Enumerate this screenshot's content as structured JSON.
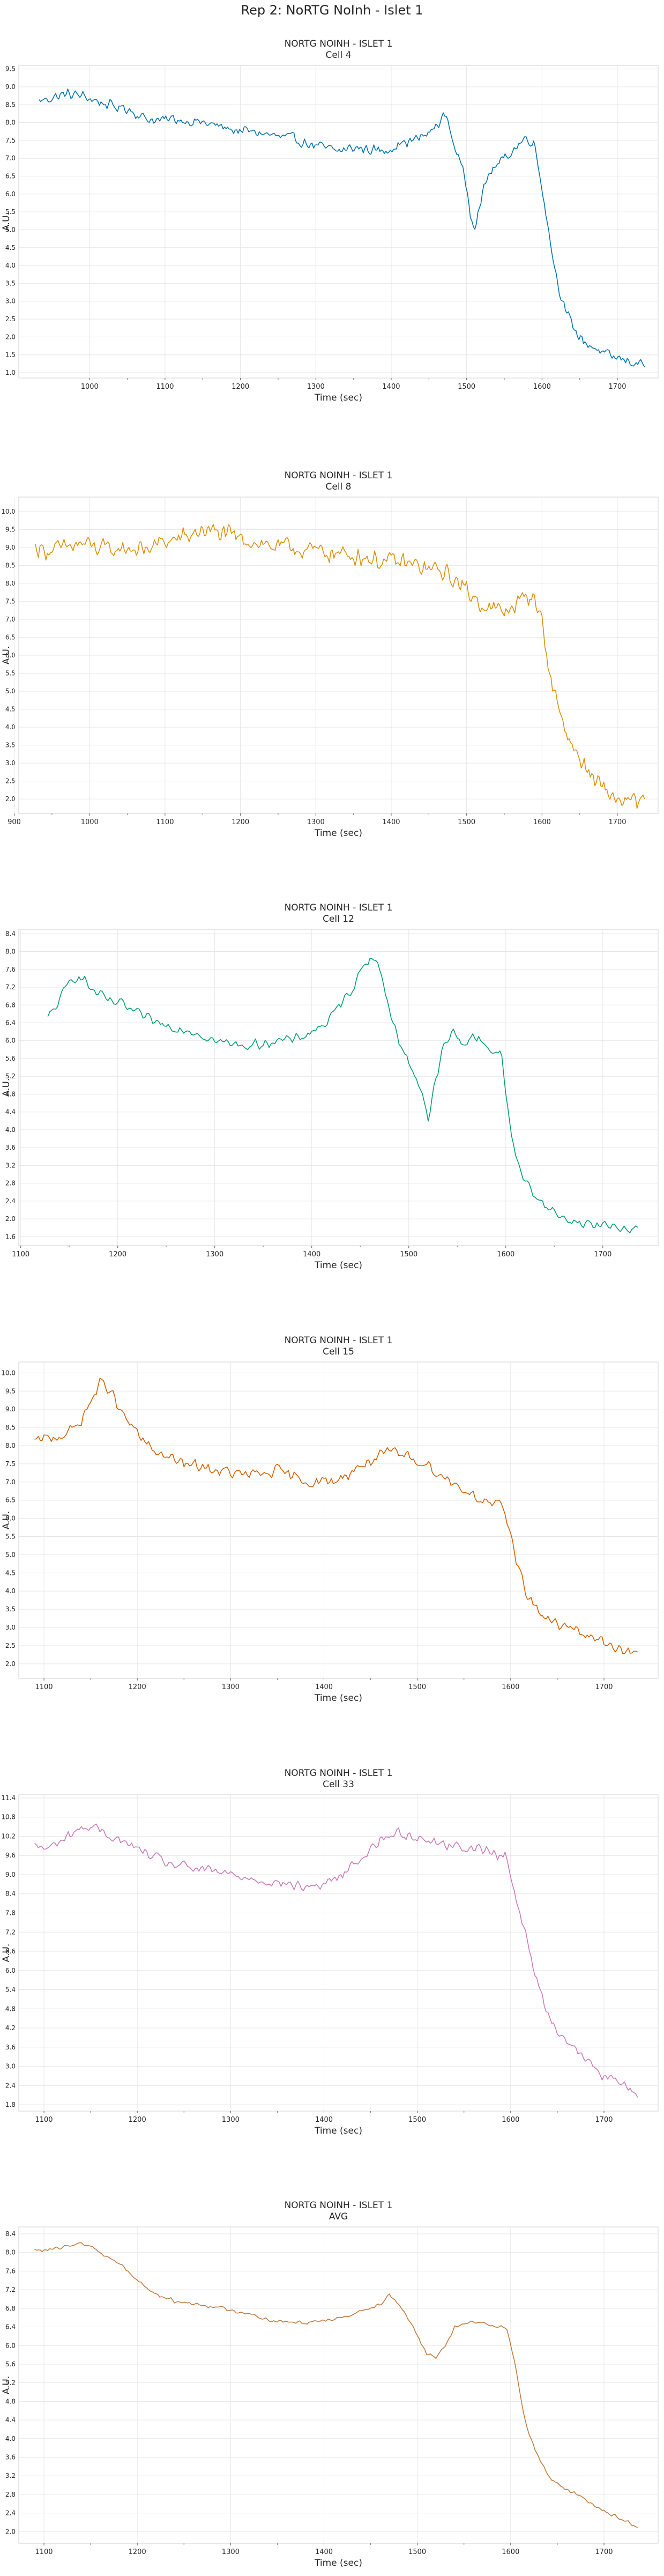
{
  "figure": {
    "title": "Rep 2: NoRTG NoInh - Islet 1"
  },
  "chart_data": [
    {
      "type": "line",
      "title": "NORTG NOINH - ISLET 1",
      "subtitle": "Cell 4",
      "xlabel": "Time (sec)",
      "ylabel": "A.U.",
      "color": "#0072b2",
      "xlim": [
        906,
        1754
      ],
      "ylim": [
        0.85,
        9.6
      ],
      "xticks": [
        1000,
        1100,
        1200,
        1300,
        1400,
        1500,
        1600,
        1700
      ],
      "yticks": [
        1.0,
        1.5,
        2.0,
        2.5,
        3.0,
        3.5,
        4.0,
        4.5,
        5.0,
        5.5,
        6.0,
        6.5,
        7.0,
        7.5,
        8.0,
        8.5,
        9.0,
        9.5
      ],
      "tick_decimals": 1,
      "noise": 0.18,
      "grid": true,
      "series": [
        {
          "x": [
            933,
            950,
            970,
            990,
            1010,
            1030,
            1050,
            1070,
            1090,
            1110,
            1130,
            1150,
            1170,
            1190,
            1210,
            1230,
            1250,
            1270,
            1290,
            1310,
            1330,
            1350,
            1370,
            1390,
            1410,
            1430,
            1450,
            1460,
            1470,
            1475,
            1480,
            1490,
            1500,
            1505,
            1510,
            1520,
            1530,
            1540,
            1550,
            1560,
            1570,
            1580,
            1590,
            1600,
            1610,
            1620,
            1630,
            1640,
            1650,
            1660,
            1670,
            1680,
            1690,
            1700,
            1710,
            1720,
            1730,
            1737
          ],
          "y": [
            8.6,
            8.7,
            8.8,
            8.75,
            8.6,
            8.45,
            8.4,
            8.15,
            8.05,
            8.1,
            8.05,
            8.0,
            7.9,
            7.8,
            7.75,
            7.7,
            7.6,
            7.55,
            7.4,
            7.3,
            7.2,
            7.3,
            7.25,
            7.2,
            7.4,
            7.5,
            7.7,
            7.9,
            8.2,
            8.1,
            7.6,
            7.0,
            6.2,
            5.5,
            5.1,
            5.9,
            6.6,
            6.8,
            7.0,
            7.2,
            7.4,
            7.6,
            7.4,
            6.2,
            4.8,
            3.6,
            2.8,
            2.3,
            2.0,
            1.8,
            1.7,
            1.55,
            1.45,
            1.4,
            1.35,
            1.3,
            1.25,
            1.25
          ]
        }
      ]
    },
    {
      "type": "line",
      "title": "NORTG NOINH - ISLET 1",
      "subtitle": "Cell 8",
      "xlabel": "Time (sec)",
      "ylabel": "A.U.",
      "color": "#de8f05",
      "xlim": [
        906,
        1754
      ],
      "ylim": [
        1.6,
        10.4
      ],
      "xticks": [
        900,
        1000,
        1100,
        1200,
        1300,
        1400,
        1500,
        1600,
        1700
      ],
      "yticks": [
        2.0,
        2.5,
        3.0,
        3.5,
        4.0,
        4.5,
        5.0,
        5.5,
        6.0,
        6.5,
        7.0,
        7.5,
        8.0,
        8.5,
        9.0,
        9.5,
        10.0
      ],
      "tick_decimals": 1,
      "noise": 0.32,
      "grid": true,
      "series": [
        {
          "x": [
            928,
            950,
            970,
            990,
            1010,
            1030,
            1050,
            1070,
            1090,
            1110,
            1130,
            1150,
            1170,
            1190,
            1210,
            1230,
            1250,
            1270,
            1290,
            1310,
            1330,
            1350,
            1370,
            1390,
            1410,
            1430,
            1450,
            1470,
            1490,
            1510,
            1530,
            1550,
            1570,
            1590,
            1600,
            1610,
            1620,
            1630,
            1640,
            1650,
            1660,
            1670,
            1680,
            1690,
            1700,
            1710,
            1720,
            1737
          ],
          "y": [
            9.0,
            8.9,
            9.0,
            9.1,
            9.0,
            8.9,
            9.0,
            8.9,
            9.1,
            9.2,
            9.3,
            9.5,
            9.4,
            9.3,
            9.2,
            9.1,
            9.0,
            9.0,
            8.9,
            8.9,
            8.8,
            8.8,
            8.7,
            8.6,
            8.6,
            8.5,
            8.4,
            8.3,
            8.0,
            7.6,
            7.3,
            7.2,
            7.5,
            7.7,
            6.9,
            5.5,
            4.7,
            4.0,
            3.5,
            3.1,
            2.8,
            2.5,
            2.3,
            2.1,
            2.0,
            1.95,
            1.9,
            1.9
          ]
        }
      ]
    },
    {
      "type": "line",
      "title": "NORTG NOINH - ISLET 1",
      "subtitle": "Cell 12",
      "xlabel": "Time (sec)",
      "ylabel": "A.U.",
      "color": "#029e73",
      "xlim": [
        1098,
        1757
      ],
      "ylim": [
        1.4,
        8.5
      ],
      "xticks": [
        1100,
        1200,
        1300,
        1400,
        1500,
        1600,
        1700
      ],
      "yticks": [
        1.6,
        2.0,
        2.4,
        2.8,
        3.2,
        3.6,
        4.0,
        4.4,
        4.8,
        5.2,
        5.6,
        6.0,
        6.4,
        6.8,
        7.2,
        7.6,
        8.0,
        8.4
      ],
      "tick_decimals": 1,
      "noise": 0.14,
      "grid": true,
      "series": [
        {
          "x": [
            1128,
            1140,
            1150,
            1160,
            1175,
            1190,
            1205,
            1220,
            1240,
            1260,
            1280,
            1300,
            1320,
            1340,
            1360,
            1380,
            1400,
            1415,
            1430,
            1445,
            1455,
            1465,
            1475,
            1485,
            1495,
            1505,
            1515,
            1520,
            1525,
            1535,
            1545,
            1555,
            1565,
            1575,
            1585,
            1595,
            1605,
            1615,
            1625,
            1640,
            1660,
            1680,
            1700,
            1720,
            1737
          ],
          "y": [
            6.5,
            6.9,
            7.3,
            7.5,
            7.1,
            6.9,
            6.8,
            6.6,
            6.4,
            6.3,
            6.2,
            6.0,
            5.9,
            5.9,
            6.0,
            6.0,
            6.2,
            6.4,
            6.8,
            7.3,
            7.8,
            7.9,
            7.2,
            6.3,
            5.7,
            5.3,
            4.8,
            4.2,
            4.8,
            5.8,
            6.2,
            5.9,
            6.1,
            6.0,
            5.8,
            5.7,
            4.0,
            3.0,
            2.7,
            2.3,
            2.0,
            1.9,
            1.85,
            1.8,
            1.8
          ]
        }
      ]
    },
    {
      "type": "line",
      "title": "NORTG NOINH - ISLET 1",
      "subtitle": "Cell 15",
      "xlabel": "Time (sec)",
      "ylabel": "A.U.",
      "color": "#d55e00",
      "xlim": [
        1073,
        1758
      ],
      "ylim": [
        1.6,
        10.3
      ],
      "xticks": [
        1100,
        1200,
        1300,
        1400,
        1500,
        1600,
        1700
      ],
      "yticks": [
        2.0,
        2.5,
        3.0,
        3.5,
        4.0,
        4.5,
        5.0,
        5.5,
        6.0,
        6.5,
        7.0,
        7.5,
        8.0,
        8.5,
        9.0,
        9.5,
        10.0
      ],
      "tick_decimals": 1,
      "noise": 0.2,
      "grid": true,
      "series": [
        {
          "x": [
            1090,
            1105,
            1120,
            1135,
            1150,
            1160,
            1170,
            1180,
            1195,
            1210,
            1230,
            1250,
            1270,
            1290,
            1310,
            1330,
            1350,
            1370,
            1390,
            1410,
            1430,
            1450,
            1470,
            1490,
            1510,
            1530,
            1550,
            1570,
            1590,
            1600,
            1605,
            1615,
            1625,
            1640,
            1660,
            1680,
            1700,
            1720,
            1737
          ],
          "y": [
            8.1,
            8.2,
            8.3,
            8.5,
            9.2,
            9.7,
            9.6,
            9.0,
            8.5,
            8.0,
            7.7,
            7.5,
            7.4,
            7.3,
            7.2,
            7.2,
            7.3,
            7.1,
            7.0,
            7.0,
            7.3,
            7.6,
            7.8,
            7.7,
            7.5,
            7.1,
            6.8,
            6.5,
            6.3,
            5.6,
            5.0,
            4.1,
            3.6,
            3.2,
            3.0,
            2.8,
            2.6,
            2.4,
            2.2
          ]
        }
      ]
    },
    {
      "type": "line",
      "title": "NORTG NOINH - ISLET 1",
      "subtitle": "Cell 33",
      "xlabel": "Time (sec)",
      "ylabel": "A.U.",
      "color": "#cc78bc",
      "xlim": [
        1073,
        1758
      ],
      "ylim": [
        1.6,
        11.5
      ],
      "xticks": [
        1100,
        1200,
        1300,
        1400,
        1500,
        1600,
        1700
      ],
      "yticks": [
        1.8,
        2.4,
        3.0,
        3.6,
        4.2,
        4.8,
        5.4,
        6.0,
        6.6,
        7.2,
        7.8,
        8.4,
        9.0,
        9.6,
        10.2,
        10.8,
        11.4
      ],
      "tick_decimals": 1,
      "noise": 0.2,
      "grid": true,
      "series": [
        {
          "x": [
            1090,
            1105,
            1120,
            1135,
            1150,
            1165,
            1180,
            1200,
            1220,
            1240,
            1260,
            1280,
            1300,
            1320,
            1340,
            1360,
            1380,
            1400,
            1420,
            1440,
            1460,
            1480,
            1500,
            1520,
            1540,
            1560,
            1580,
            1595,
            1605,
            1615,
            1625,
            1640,
            1660,
            1680,
            1700,
            1720,
            1737
          ],
          "y": [
            9.9,
            9.8,
            10.1,
            10.4,
            10.5,
            10.3,
            10.1,
            9.8,
            9.5,
            9.3,
            9.2,
            9.1,
            9.0,
            8.9,
            8.8,
            8.7,
            8.6,
            8.7,
            9.0,
            9.5,
            10.1,
            10.3,
            10.2,
            10.0,
            9.9,
            9.8,
            9.7,
            9.6,
            8.4,
            7.2,
            6.0,
            4.6,
            3.8,
            3.2,
            2.7,
            2.4,
            2.2
          ]
        }
      ]
    },
    {
      "type": "line",
      "title": "NORTG NOINH - ISLET 1",
      "subtitle": "AVG",
      "xlabel": "Time (sec)",
      "ylabel": "A.U.",
      "color": "#ca9161",
      "line_color": "#c07a3e",
      "xlim": [
        1073,
        1758
      ],
      "ylim": [
        1.75,
        8.55
      ],
      "xticks": [
        1100,
        1200,
        1300,
        1400,
        1500,
        1600,
        1700
      ],
      "yticks": [
        2.0,
        2.4,
        2.8,
        3.2,
        3.6,
        4.0,
        4.4,
        4.8,
        5.2,
        5.6,
        6.0,
        6.4,
        6.8,
        7.2,
        7.6,
        8.0,
        8.4
      ],
      "tick_decimals": 1,
      "noise": 0.05,
      "grid": true,
      "series": [
        {
          "x": [
            1090,
            1105,
            1120,
            1135,
            1150,
            1160,
            1170,
            1185,
            1200,
            1220,
            1240,
            1260,
            1280,
            1300,
            1320,
            1340,
            1360,
            1380,
            1400,
            1420,
            1440,
            1460,
            1470,
            1480,
            1490,
            1500,
            1510,
            1520,
            1530,
            1540,
            1560,
            1580,
            1595,
            1605,
            1615,
            1625,
            1640,
            1660,
            1680,
            1700,
            1720,
            1737
          ],
          "y": [
            8.05,
            8.05,
            8.1,
            8.2,
            8.15,
            8.0,
            7.9,
            7.7,
            7.4,
            7.1,
            6.95,
            6.9,
            6.85,
            6.75,
            6.7,
            6.55,
            6.5,
            6.5,
            6.55,
            6.6,
            6.75,
            6.9,
            7.1,
            6.9,
            6.6,
            6.2,
            5.8,
            5.75,
            6.0,
            6.4,
            6.5,
            6.45,
            6.4,
            5.6,
            4.4,
            3.8,
            3.2,
            2.9,
            2.7,
            2.45,
            2.25,
            2.1
          ]
        }
      ]
    }
  ]
}
